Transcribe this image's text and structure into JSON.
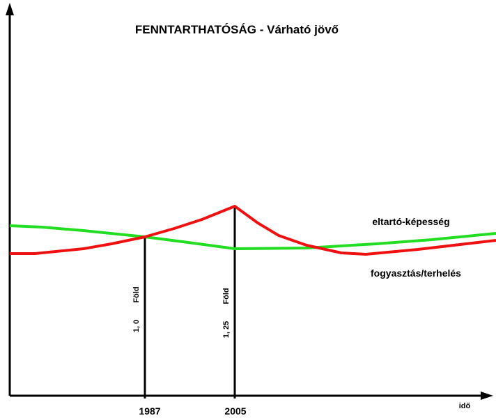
{
  "title": "FENNTARTHATÓSÁG - Várható jövő",
  "x_axis_label": "idő",
  "curves": [
    {
      "label": "eltartó-képesség",
      "color": "#22dd22"
    },
    {
      "label": "fogyasztás/terhelés",
      "color": "#ee1111"
    }
  ],
  "markers": [
    {
      "year": "1987",
      "amount": "1, 0",
      "unit": "Föld"
    },
    {
      "year": "2005",
      "amount": "1, 25",
      "unit": "Föld"
    }
  ]
}
